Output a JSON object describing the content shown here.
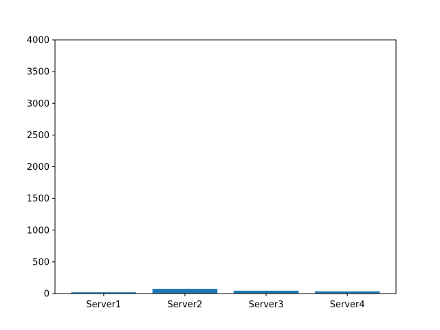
{
  "chart_data": {
    "type": "bar",
    "categories": [
      "Server1",
      "Server2",
      "Server3",
      "Server4"
    ],
    "values": [
      20,
      75,
      45,
      35
    ],
    "ylim": [
      0,
      4000
    ],
    "yticks": [
      0,
      500,
      1000,
      1500,
      2000,
      2500,
      3000,
      3500,
      4000
    ],
    "bar_color": "#1f77b4",
    "grid": false,
    "title": "",
    "xlabel": "",
    "ylabel": ""
  }
}
